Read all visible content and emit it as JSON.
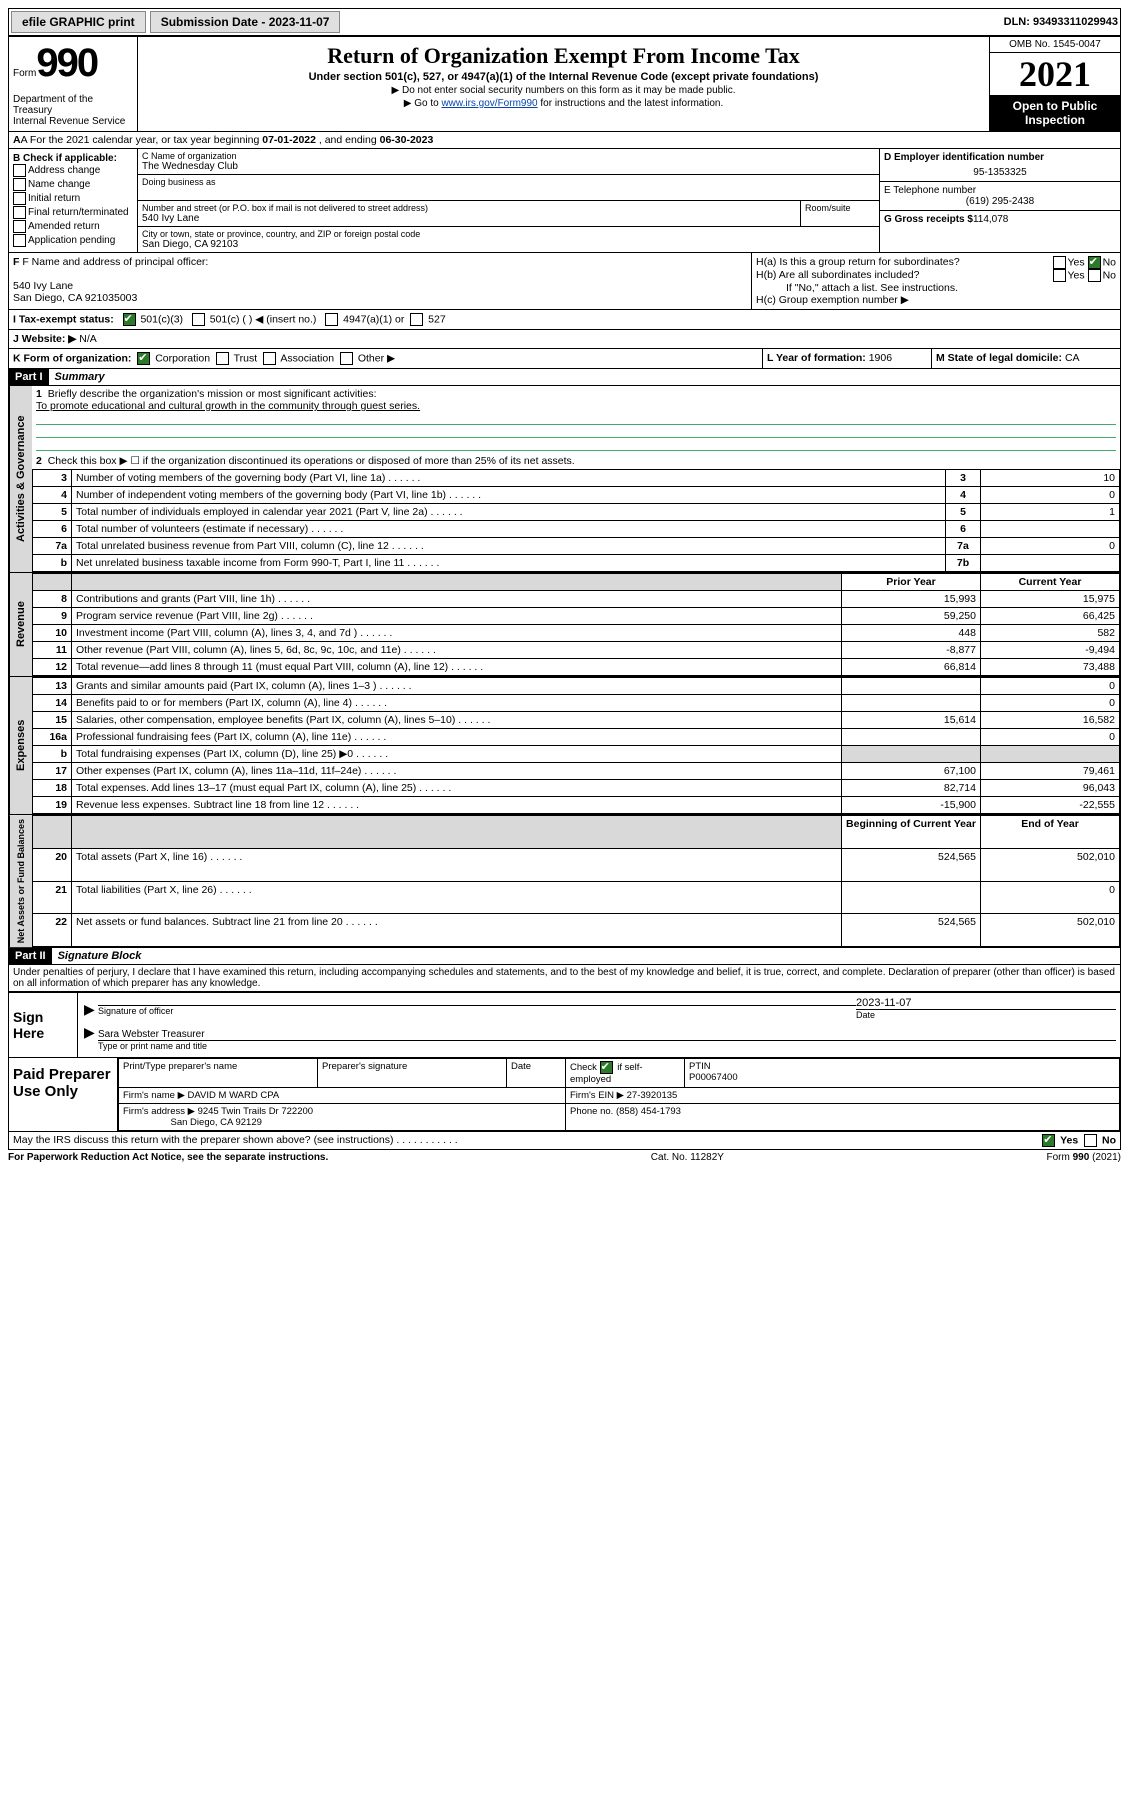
{
  "topbar": {
    "efile": "efile GRAPHIC print",
    "sub_label": "Submission Date - 2023-11-07",
    "dln": "DLN: 93493311029943"
  },
  "header": {
    "form_word": "Form",
    "form_num": "990",
    "dept": "Department of the Treasury\nInternal Revenue Service",
    "title": "Return of Organization Exempt From Income Tax",
    "sub": "Under section 501(c), 527, or 4947(a)(1) of the Internal Revenue Code (except private foundations)",
    "note1": "▶ Do not enter social security numbers on this form as it may be made public.",
    "note2_pre": "▶ Go to ",
    "note2_link": "www.irs.gov/Form990",
    "note2_post": " for instructions and the latest information.",
    "omb": "OMB No. 1545-0047",
    "year": "2021",
    "open": "Open to Public Inspection"
  },
  "rowA": {
    "text_pre": "A For the 2021 calendar year, or tax year beginning ",
    "begin": "07-01-2022",
    "mid": " , and ending ",
    "end": "06-30-2023"
  },
  "boxB": {
    "title": "B Check if applicable:",
    "items": [
      "Address change",
      "Name change",
      "Initial return",
      "Final return/terminated",
      "Amended return",
      "Application pending"
    ]
  },
  "boxC": {
    "name_label": "C Name of organization",
    "name": "The Wednesday Club",
    "dba_label": "Doing business as",
    "addr_label": "Number and street (or P.O. box if mail is not delivered to street address)",
    "room_label": "Room/suite",
    "addr": "540 Ivy Lane",
    "city_label": "City or town, state or province, country, and ZIP or foreign postal code",
    "city": "San Diego, CA  92103"
  },
  "boxD": {
    "label": "D Employer identification number",
    "value": "95-1353325"
  },
  "boxE": {
    "label": "E Telephone number",
    "value": "(619) 295-2438"
  },
  "boxG": {
    "label": "G Gross receipts $",
    "value": "114,078"
  },
  "boxF": {
    "label": "F Name and address of principal officer:",
    "addr1": "540 Ivy Lane",
    "addr2": "San Diego, CA  921035003"
  },
  "boxH": {
    "ha": "H(a)  Is this a group return for subordinates?",
    "hb": "H(b)  Are all subordinates included?",
    "hnote": "If \"No,\" attach a list. See instructions.",
    "hc": "H(c)  Group exemption number ▶"
  },
  "rowI": {
    "label": "I   Tax-exempt status:",
    "opts": [
      "501(c)(3)",
      "501(c) (  ) ◀ (insert no.)",
      "4947(a)(1) or",
      "527"
    ]
  },
  "rowJ": {
    "label": "J   Website: ▶",
    "value": "N/A"
  },
  "rowK": {
    "label": "K Form of organization:",
    "opts": [
      "Corporation",
      "Trust",
      "Association",
      "Other ▶"
    ]
  },
  "rowL": {
    "label": "L Year of formation:",
    "value": "1906"
  },
  "rowM": {
    "label": "M State of legal domicile:",
    "value": "CA"
  },
  "part1": {
    "hdr": "Part I",
    "title": "Summary"
  },
  "summary": {
    "q1_label": "Briefly describe the organization's mission or most significant activities:",
    "q1_text": "To promote educational and cultural growth in the community through guest series.",
    "q2": "Check this box ▶ ☐  if the organization discontinued its operations or disposed of more than 25% of its net assets.",
    "rows": [
      {
        "n": "3",
        "t": "Number of voting members of the governing body (Part VI, line 1a)",
        "l": "3",
        "v": "10"
      },
      {
        "n": "4",
        "t": "Number of independent voting members of the governing body (Part VI, line 1b)",
        "l": "4",
        "v": "0"
      },
      {
        "n": "5",
        "t": "Total number of individuals employed in calendar year 2021 (Part V, line 2a)",
        "l": "5",
        "v": "1"
      },
      {
        "n": "6",
        "t": "Total number of volunteers (estimate if necessary)",
        "l": "6",
        "v": ""
      },
      {
        "n": "7a",
        "t": "Total unrelated business revenue from Part VIII, column (C), line 12",
        "l": "7a",
        "v": "0"
      },
      {
        "n": "b",
        "t": "Net unrelated business taxable income from Form 990-T, Part I, line 11",
        "l": "7b",
        "v": ""
      }
    ],
    "col_hdr_prior": "Prior Year",
    "col_hdr_curr": "Current Year",
    "rev": [
      {
        "n": "8",
        "t": "Contributions and grants (Part VIII, line 1h)",
        "p": "15,993",
        "c": "15,975"
      },
      {
        "n": "9",
        "t": "Program service revenue (Part VIII, line 2g)",
        "p": "59,250",
        "c": "66,425"
      },
      {
        "n": "10",
        "t": "Investment income (Part VIII, column (A), lines 3, 4, and 7d )",
        "p": "448",
        "c": "582"
      },
      {
        "n": "11",
        "t": "Other revenue (Part VIII, column (A), lines 5, 6d, 8c, 9c, 10c, and 11e)",
        "p": "-8,877",
        "c": "-9,494"
      },
      {
        "n": "12",
        "t": "Total revenue—add lines 8 through 11 (must equal Part VIII, column (A), line 12)",
        "p": "66,814",
        "c": "73,488"
      }
    ],
    "exp": [
      {
        "n": "13",
        "t": "Grants and similar amounts paid (Part IX, column (A), lines 1–3 )",
        "p": "",
        "c": "0"
      },
      {
        "n": "14",
        "t": "Benefits paid to or for members (Part IX, column (A), line 4)",
        "p": "",
        "c": "0"
      },
      {
        "n": "15",
        "t": "Salaries, other compensation, employee benefits (Part IX, column (A), lines 5–10)",
        "p": "15,614",
        "c": "16,582"
      },
      {
        "n": "16a",
        "t": "Professional fundraising fees (Part IX, column (A), line 11e)",
        "p": "",
        "c": "0"
      },
      {
        "n": "b",
        "t": "Total fundraising expenses (Part IX, column (D), line 25) ▶0",
        "p": "shade",
        "c": "shade"
      },
      {
        "n": "17",
        "t": "Other expenses (Part IX, column (A), lines 11a–11d, 11f–24e)",
        "p": "67,100",
        "c": "79,461"
      },
      {
        "n": "18",
        "t": "Total expenses. Add lines 13–17 (must equal Part IX, column (A), line 25)",
        "p": "82,714",
        "c": "96,043"
      },
      {
        "n": "19",
        "t": "Revenue less expenses. Subtract line 18 from line 12",
        "p": "-15,900",
        "c": "-22,555"
      }
    ],
    "col_hdr_begin": "Beginning of Current Year",
    "col_hdr_end": "End of Year",
    "net": [
      {
        "n": "20",
        "t": "Total assets (Part X, line 16)",
        "p": "524,565",
        "c": "502,010"
      },
      {
        "n": "21",
        "t": "Total liabilities (Part X, line 26)",
        "p": "",
        "c": "0"
      },
      {
        "n": "22",
        "t": "Net assets or fund balances. Subtract line 21 from line 20",
        "p": "524,565",
        "c": "502,010"
      }
    ],
    "vlabels": {
      "gov": "Activities & Governance",
      "rev": "Revenue",
      "exp": "Expenses",
      "net": "Net Assets or Fund Balances"
    }
  },
  "part2": {
    "hdr": "Part II",
    "title": "Signature Block"
  },
  "decl": "Under penalties of perjury, I declare that I have examined this return, including accompanying schedules and statements, and to the best of my knowledge and belief, it is true, correct, and complete. Declaration of preparer (other than officer) is based on all information of which preparer has any knowledge.",
  "sign": {
    "here": "Sign Here",
    "date": "2023-11-07",
    "sig_label": "Signature of officer",
    "date_label": "Date",
    "name": "Sara Webster Treasurer",
    "name_label": "Type or print name and title"
  },
  "prep": {
    "title": "Paid Preparer Use Only",
    "h1": "Print/Type preparer's name",
    "h2": "Preparer's signature",
    "h3": "Date",
    "h4_pre": "Check",
    "h4_post": "if self-employed",
    "h5": "PTIN",
    "ptin": "P00067400",
    "firm_label": "Firm's name   ▶",
    "firm": "DAVID M WARD CPA",
    "ein_label": "Firm's EIN ▶",
    "ein": "27-3920135",
    "addr_label": "Firm's address ▶",
    "addr1": "9245 Twin Trails Dr 722200",
    "addr2": "San Diego, CA  92129",
    "phone_label": "Phone no.",
    "phone": "(858) 454-1793"
  },
  "discuss": {
    "text": "May the IRS discuss this return with the preparer shown above? (see instructions)",
    "yes": "Yes",
    "no": "No"
  },
  "footer": {
    "left": "For Paperwork Reduction Act Notice, see the separate instructions.",
    "mid": "Cat. No. 11282Y",
    "right_pre": "Form ",
    "right_b": "990",
    "right_post": " (2021)"
  },
  "ui": {
    "yes": "Yes",
    "no": "No"
  }
}
